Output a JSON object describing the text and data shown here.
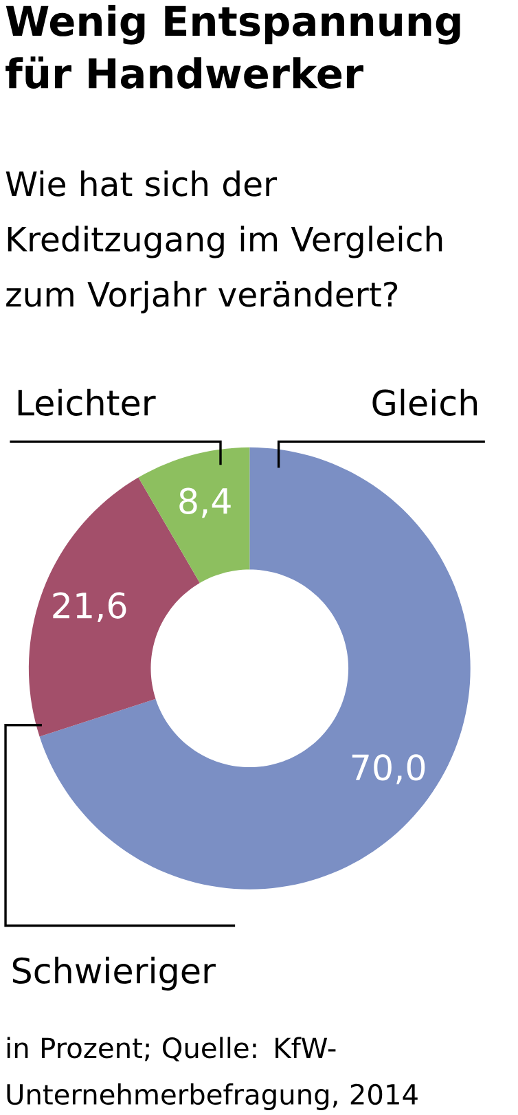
{
  "chart_data": {
    "type": "donut",
    "title": "Wenig Entspannung für Handwerker",
    "subtitle": "Wie hat sich der Kreditzugang im Vergleich zum Vorjahr verändert?",
    "categories": [
      "Gleich",
      "Schwieriger",
      "Leichter"
    ],
    "values": [
      70.0,
      21.6,
      8.4
    ],
    "value_labels": [
      "70,0",
      "21,6",
      "8,4"
    ],
    "colors": [
      "#7b8fc4",
      "#a34f6a",
      "#8dbf5f"
    ],
    "annotations": [
      "in Prozent; Quelle: KfW-Unternehmerbefragung, 2014"
    ]
  }
}
